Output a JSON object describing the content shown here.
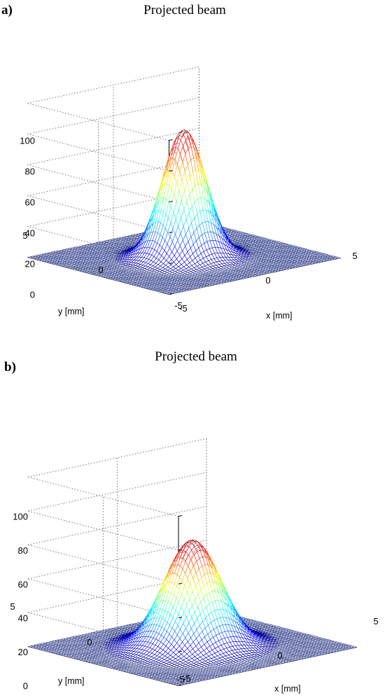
{
  "chart_data": [
    {
      "type": "surface",
      "panel_label": "a)",
      "title": "Projected beam",
      "xlabel": "x [mm]",
      "ylabel": "y [mm]",
      "xlim": [
        -5,
        5
      ],
      "ylim": [
        -5,
        5
      ],
      "zlim": [
        0,
        100
      ],
      "x_ticks": [
        "-5",
        "0",
        "5"
      ],
      "y_ticks": [
        "-5",
        "0",
        "5"
      ],
      "z_ticks": [
        "0",
        "20",
        "40",
        "60",
        "80",
        "100"
      ],
      "grid": true,
      "colormap": "jet",
      "surface": {
        "peak": 83,
        "sigma_mm": 1.0
      }
    },
    {
      "type": "surface",
      "panel_label": "b)",
      "title": "Projected beam",
      "xlabel": "x [mm]",
      "ylabel": "y [mm]",
      "xlim": [
        -5,
        5
      ],
      "ylim": [
        -5,
        5
      ],
      "zlim": [
        0,
        100
      ],
      "x_ticks": [
        "-5",
        "0",
        "5"
      ],
      "y_ticks": [
        "-5",
        "0",
        "5"
      ],
      "z_ticks": [
        "0",
        "20",
        "40",
        "60",
        "80",
        "100"
      ],
      "grid": true,
      "colormap": "jet",
      "surface": {
        "peak": 63,
        "sigma_mm": 1.25
      }
    }
  ]
}
